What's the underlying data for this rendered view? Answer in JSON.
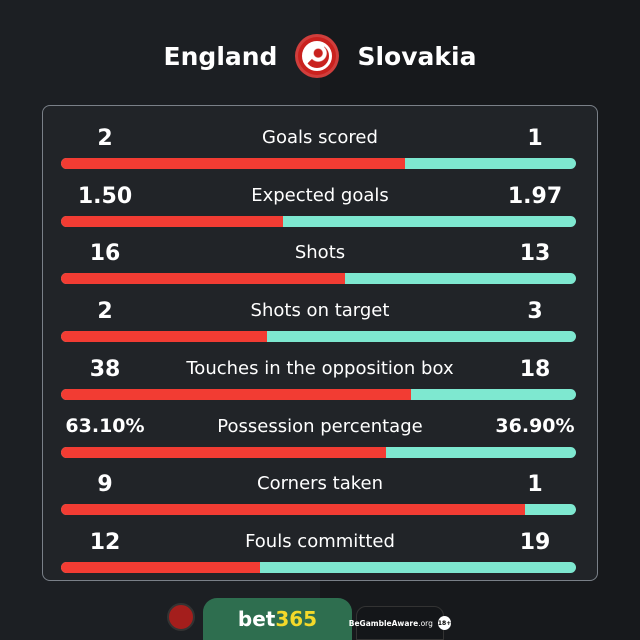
{
  "header": {
    "home": "England",
    "away": "Slovakia"
  },
  "colors": {
    "home": "#f23c33",
    "away": "#7ee8d0"
  },
  "stats": [
    {
      "label": "Goals scored",
      "home": "2",
      "away": "1",
      "home_share": 0.667
    },
    {
      "label": "Expected goals",
      "home": "1.50",
      "away": "1.97",
      "home_share": 0.432
    },
    {
      "label": "Shots",
      "home": "16",
      "away": "13",
      "home_share": 0.552
    },
    {
      "label": "Shots on target",
      "home": "2",
      "away": "3",
      "home_share": 0.4
    },
    {
      "label": "Touches in the opposition box",
      "home": "38",
      "away": "18",
      "home_share": 0.679
    },
    {
      "label": "Possession percentage",
      "home": "63.10%",
      "away": "36.90%",
      "home_share": 0.631
    },
    {
      "label": "Corners taken",
      "home": "9",
      "away": "1",
      "home_share": 0.9
    },
    {
      "label": "Fouls committed",
      "home": "12",
      "away": "19",
      "home_share": 0.387
    }
  ],
  "footer": {
    "bet_a": "bet",
    "bet_b": "365",
    "aware": "BeGambleAware",
    "aware_org": ".org",
    "age": "18+"
  }
}
